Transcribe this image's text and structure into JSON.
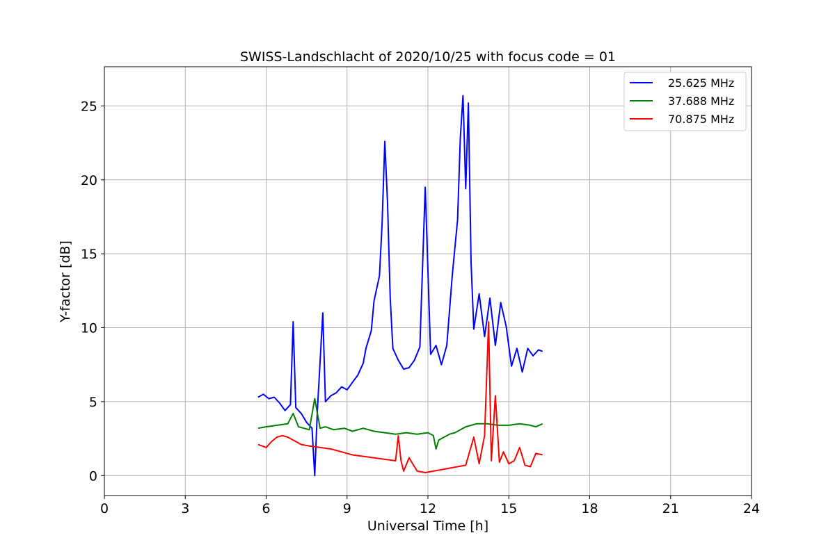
{
  "chart_data": {
    "type": "line",
    "title": "SWISS-Landschlacht of 2020/10/25 with focus code = 01",
    "xlabel": "Universal Time [h]",
    "ylabel": "Y-factor [dB]",
    "xlim": [
      0,
      24
    ],
    "ylim": [
      -1.35,
      27.65
    ],
    "xticks": [
      0,
      3,
      6,
      9,
      12,
      15,
      18,
      21,
      24
    ],
    "yticks": [
      0,
      5,
      10,
      15,
      20,
      25
    ],
    "grid": true,
    "legend_position": "top-right",
    "series": [
      {
        "name": "25.625 MHz",
        "color": "#0000ff",
        "x": [
          5.7,
          5.9,
          6.1,
          6.3,
          6.5,
          6.7,
          6.9,
          7.0,
          7.1,
          7.3,
          7.5,
          7.7,
          7.8,
          7.9,
          8.1,
          8.2,
          8.4,
          8.6,
          8.8,
          9.0,
          9.2,
          9.4,
          9.6,
          9.7,
          9.9,
          10.0,
          10.2,
          10.3,
          10.4,
          10.5,
          10.6,
          10.7,
          10.9,
          11.1,
          11.3,
          11.5,
          11.7,
          11.9,
          12.1,
          12.3,
          12.5,
          12.7,
          12.9,
          13.1,
          13.2,
          13.3,
          13.4,
          13.5,
          13.6,
          13.7,
          13.9,
          14.1,
          14.3,
          14.5,
          14.7,
          14.9,
          15.1,
          15.3,
          15.5,
          15.7,
          15.9,
          16.1,
          16.25
        ],
        "y": [
          5.3,
          5.5,
          5.2,
          5.3,
          4.9,
          4.4,
          4.8,
          10.4,
          4.6,
          4.2,
          3.6,
          3.2,
          0.0,
          4.4,
          11.0,
          5.0,
          5.4,
          5.6,
          6.0,
          5.8,
          6.3,
          6.8,
          7.6,
          8.6,
          9.8,
          11.8,
          13.5,
          17.0,
          22.6,
          18.5,
          12.0,
          8.6,
          7.8,
          7.2,
          7.3,
          7.8,
          8.7,
          19.5,
          8.2,
          8.8,
          7.5,
          8.8,
          13.5,
          17.3,
          22.8,
          25.7,
          19.4,
          25.2,
          14.4,
          9.9,
          12.3,
          9.4,
          12.0,
          8.8,
          11.7,
          10.1,
          7.4,
          8.6,
          7.0,
          8.6,
          8.1,
          8.5,
          8.4
        ]
      },
      {
        "name": "37.688 MHz",
        "color": "#008000",
        "x": [
          5.7,
          6.0,
          6.4,
          6.8,
          7.0,
          7.2,
          7.4,
          7.6,
          7.8,
          8.0,
          8.2,
          8.5,
          8.9,
          9.2,
          9.6,
          10.0,
          10.4,
          10.8,
          11.2,
          11.6,
          12.0,
          12.2,
          12.3,
          12.4,
          12.8,
          13.0,
          13.4,
          13.8,
          14.2,
          14.6,
          15.0,
          15.4,
          15.8,
          16.0,
          16.25
        ],
        "y": [
          3.2,
          3.3,
          3.4,
          3.5,
          4.2,
          3.3,
          3.2,
          3.1,
          5.2,
          3.2,
          3.3,
          3.1,
          3.2,
          3.0,
          3.2,
          3.0,
          2.9,
          2.8,
          2.9,
          2.8,
          2.9,
          2.7,
          1.8,
          2.4,
          2.8,
          2.9,
          3.3,
          3.5,
          3.5,
          3.4,
          3.4,
          3.5,
          3.4,
          3.3,
          3.5
        ]
      },
      {
        "name": "70.875 MHz",
        "color": "#ff0000",
        "x": [
          5.7,
          6.0,
          6.2,
          6.4,
          6.6,
          6.8,
          7.0,
          7.3,
          7.6,
          8.0,
          8.4,
          8.8,
          9.2,
          9.6,
          10.0,
          10.4,
          10.8,
          10.9,
          11.0,
          11.1,
          11.3,
          11.6,
          11.9,
          12.2,
          12.5,
          12.8,
          13.1,
          13.4,
          13.7,
          13.9,
          14.1,
          14.25,
          14.35,
          14.5,
          14.65,
          14.8,
          15.0,
          15.2,
          15.4,
          15.6,
          15.8,
          16.0,
          16.25
        ],
        "y": [
          2.1,
          1.9,
          2.3,
          2.6,
          2.7,
          2.6,
          2.4,
          2.1,
          2.0,
          1.9,
          1.8,
          1.6,
          1.4,
          1.3,
          1.2,
          1.1,
          1.0,
          2.7,
          1.0,
          0.3,
          1.2,
          0.3,
          0.2,
          0.3,
          0.4,
          0.5,
          0.6,
          0.7,
          2.6,
          0.8,
          2.7,
          10.4,
          1.0,
          5.4,
          0.9,
          1.6,
          0.8,
          1.0,
          1.9,
          0.7,
          0.6,
          1.5,
          1.4
        ]
      }
    ]
  }
}
